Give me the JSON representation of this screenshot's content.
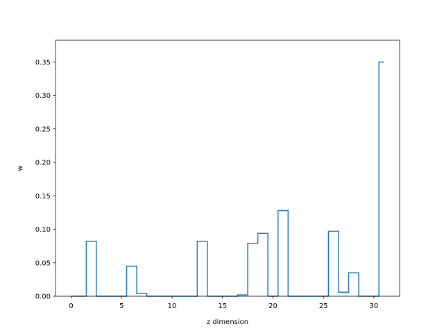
{
  "chart_data": {
    "type": "line",
    "style": "step",
    "title": "",
    "xlabel": "z dimension",
    "ylabel": "w",
    "xlim": [
      -1.55,
      32.55
    ],
    "ylim": [
      0,
      0.3825
    ],
    "grid": false,
    "xticks": [
      0,
      5,
      10,
      15,
      20,
      25,
      30
    ],
    "xtick_labels": [
      "0",
      "5",
      "10",
      "15",
      "20",
      "25",
      "30"
    ],
    "yticks": [
      0,
      0.05,
      0.1,
      0.15,
      0.2,
      0.25,
      0.3,
      0.35
    ],
    "ytick_labels": [
      "0.00",
      "0.05",
      "0.10",
      "0.15",
      "0.20",
      "0.25",
      "0.30",
      "0.35"
    ],
    "line_color": "#1f77b4",
    "x": [
      0,
      1,
      2,
      3,
      4,
      5,
      6,
      7,
      8,
      9,
      10,
      11,
      12,
      13,
      14,
      15,
      16,
      17,
      18,
      19,
      20,
      21,
      22,
      23,
      24,
      25,
      26,
      27,
      28,
      29,
      30,
      31
    ],
    "values": [
      0,
      0,
      0.082,
      0,
      0,
      0,
      0.045,
      0.004,
      0,
      0,
      0,
      0,
      0,
      0.082,
      0,
      0,
      0,
      0.002,
      0.079,
      0.094,
      0,
      0.128,
      0,
      0,
      0,
      0,
      0.097,
      0.006,
      0.035,
      0,
      0,
      0.35
    ]
  }
}
